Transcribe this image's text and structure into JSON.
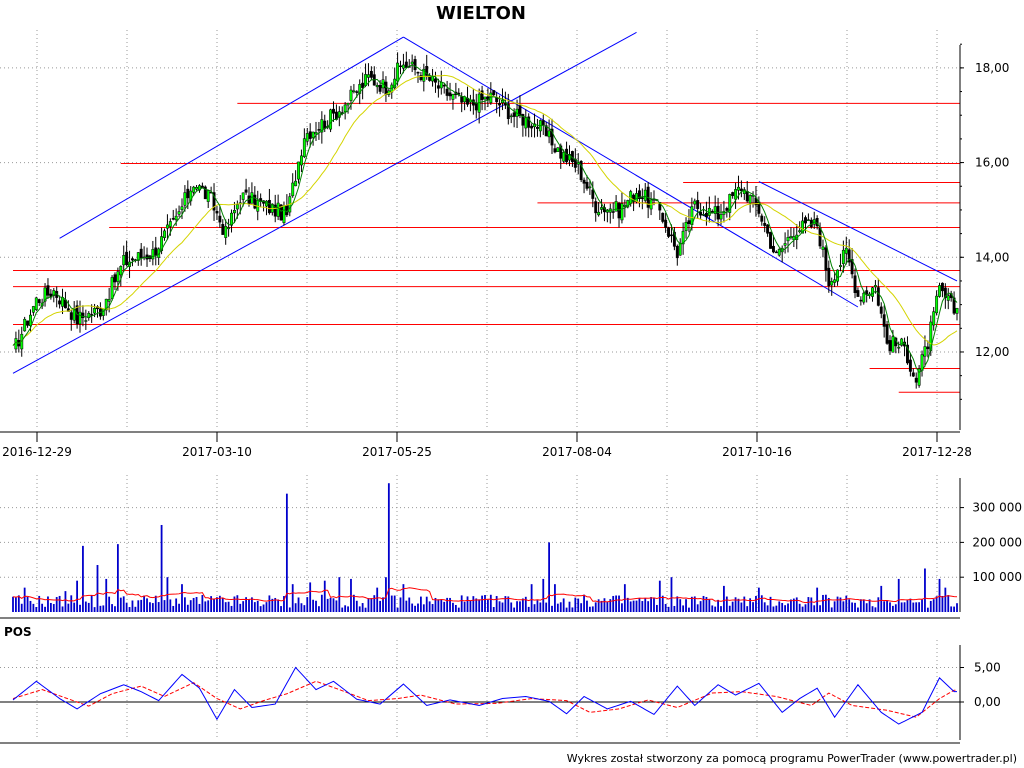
{
  "chart_data": [
    {
      "panel": "price",
      "type": "candlestick",
      "title": "WIELTON",
      "x_axis": "date",
      "x_ticks": [
        "2016-12-29",
        "2017-03-10",
        "2017-05-25",
        "2017-08-04",
        "2017-10-16",
        "2017-12-28"
      ],
      "y_ticks": [
        "12,00",
        "14,00",
        "16,00",
        "18,00"
      ],
      "ylim": [
        10.5,
        18.8
      ],
      "grid": true,
      "colors": {
        "up": "#00ff00",
        "down": "#000000",
        "ma_short": "#008000",
        "ma_long": "#d4d400",
        "hline": "#ff0000",
        "trend": "#0000ff"
      },
      "close_path": [
        {
          "i": 0,
          "v": 12.0
        },
        {
          "i": 8,
          "v": 13.1
        },
        {
          "i": 14,
          "v": 13.3
        },
        {
          "i": 22,
          "v": 12.7
        },
        {
          "i": 30,
          "v": 12.9
        },
        {
          "i": 38,
          "v": 13.9
        },
        {
          "i": 48,
          "v": 14.1
        },
        {
          "i": 56,
          "v": 14.8
        },
        {
          "i": 62,
          "v": 15.6
        },
        {
          "i": 68,
          "v": 15.2
        },
        {
          "i": 73,
          "v": 14.5
        },
        {
          "i": 78,
          "v": 15.3
        },
        {
          "i": 86,
          "v": 15.1
        },
        {
          "i": 94,
          "v": 14.9
        },
        {
          "i": 100,
          "v": 16.6
        },
        {
          "i": 108,
          "v": 16.9
        },
        {
          "i": 115,
          "v": 17.3
        },
        {
          "i": 122,
          "v": 17.8
        },
        {
          "i": 128,
          "v": 17.6
        },
        {
          "i": 134,
          "v": 18.1
        },
        {
          "i": 140,
          "v": 17.9
        },
        {
          "i": 148,
          "v": 17.5
        },
        {
          "i": 156,
          "v": 17.2
        },
        {
          "i": 164,
          "v": 17.4
        },
        {
          "i": 172,
          "v": 17.0
        },
        {
          "i": 180,
          "v": 16.8
        },
        {
          "i": 188,
          "v": 16.2
        },
        {
          "i": 194,
          "v": 15.9
        },
        {
          "i": 200,
          "v": 15.1
        },
        {
          "i": 208,
          "v": 15.0
        },
        {
          "i": 214,
          "v": 15.4
        },
        {
          "i": 222,
          "v": 15.0
        },
        {
          "i": 228,
          "v": 14.1
        },
        {
          "i": 234,
          "v": 15.1
        },
        {
          "i": 242,
          "v": 14.9
        },
        {
          "i": 250,
          "v": 15.5
        },
        {
          "i": 256,
          "v": 15.0
        },
        {
          "i": 262,
          "v": 14.0
        },
        {
          "i": 268,
          "v": 14.6
        },
        {
          "i": 276,
          "v": 14.7
        },
        {
          "i": 280,
          "v": 13.5
        },
        {
          "i": 286,
          "v": 14.1
        },
        {
          "i": 290,
          "v": 13.2
        },
        {
          "i": 296,
          "v": 13.4
        },
        {
          "i": 300,
          "v": 12.2
        },
        {
          "i": 306,
          "v": 12.1
        },
        {
          "i": 310,
          "v": 11.4
        },
        {
          "i": 314,
          "v": 12.2
        },
        {
          "i": 318,
          "v": 13.3
        },
        {
          "i": 323,
          "v": 12.9
        }
      ],
      "horizontal_levels": [
        {
          "y": 17.25,
          "from": 77,
          "to": 324
        },
        {
          "y": 15.98,
          "from": 37,
          "to": 324
        },
        {
          "y": 15.58,
          "from": 230,
          "to": 324
        },
        {
          "y": 15.15,
          "from": 180,
          "to": 324
        },
        {
          "y": 14.63,
          "from": 33,
          "to": 324
        },
        {
          "y": 13.72,
          "from": 0,
          "to": 324
        },
        {
          "y": 13.38,
          "from": 0,
          "to": 324
        },
        {
          "y": 12.58,
          "from": 0,
          "to": 324
        },
        {
          "y": 11.65,
          "from": 294,
          "to": 324
        },
        {
          "y": 11.15,
          "from": 304,
          "to": 324
        }
      ],
      "trend_lines": [
        {
          "x1": 16,
          "y1": 14.4,
          "x2": 134,
          "y2": 18.65
        },
        {
          "x1": 0,
          "y1": 11.55,
          "x2": 214,
          "y2": 18.75
        },
        {
          "x1": 134,
          "y1": 18.65,
          "x2": 290,
          "y2": 12.95
        },
        {
          "x1": 256,
          "y1": 15.6,
          "x2": 324,
          "y2": 13.5
        }
      ]
    },
    {
      "panel": "volume",
      "type": "bar",
      "y_ticks": [
        "100 000",
        "200 000",
        "300 000"
      ],
      "ylim": [
        0,
        385000
      ],
      "colors": {
        "bar": "#0000cc",
        "ma": "#ff0000"
      },
      "spikes": [
        {
          "i": 4,
          "v": 70000
        },
        {
          "i": 18,
          "v": 60000
        },
        {
          "i": 22,
          "v": 90000
        },
        {
          "i": 24,
          "v": 190000
        },
        {
          "i": 29,
          "v": 135000
        },
        {
          "i": 32,
          "v": 95000
        },
        {
          "i": 36,
          "v": 195000
        },
        {
          "i": 51,
          "v": 250000
        },
        {
          "i": 53,
          "v": 100000
        },
        {
          "i": 58,
          "v": 80000
        },
        {
          "i": 94,
          "v": 340000
        },
        {
          "i": 96,
          "v": 80000
        },
        {
          "i": 102,
          "v": 85000
        },
        {
          "i": 107,
          "v": 90000
        },
        {
          "i": 112,
          "v": 100000
        },
        {
          "i": 116,
          "v": 95000
        },
        {
          "i": 125,
          "v": 70000
        },
        {
          "i": 129,
          "v": 370000
        },
        {
          "i": 128,
          "v": 100000
        },
        {
          "i": 134,
          "v": 80000
        },
        {
          "i": 178,
          "v": 80000
        },
        {
          "i": 182,
          "v": 95000
        },
        {
          "i": 184,
          "v": 200000
        },
        {
          "i": 186,
          "v": 80000
        },
        {
          "i": 210,
          "v": 80000
        },
        {
          "i": 222,
          "v": 90000
        },
        {
          "i": 226,
          "v": 100000
        },
        {
          "i": 244,
          "v": 75000
        },
        {
          "i": 256,
          "v": 70000
        },
        {
          "i": 276,
          "v": 70000
        },
        {
          "i": 298,
          "v": 75000
        },
        {
          "i": 304,
          "v": 95000
        },
        {
          "i": 313,
          "v": 125000
        },
        {
          "i": 318,
          "v": 95000
        },
        {
          "i": 320,
          "v": 70000
        }
      ]
    },
    {
      "panel": "oscillator",
      "type": "line",
      "label": "POS",
      "y_ticks": [
        "5,00",
        "0,00"
      ],
      "ylim": [
        -6,
        7.5
      ],
      "colors": {
        "pos": "#0000ff",
        "signal": "#ff0000",
        "zero": "#000000"
      },
      "pos_path": [
        {
          "i": 0,
          "v": 0.3
        },
        {
          "i": 8,
          "v": 3.0
        },
        {
          "i": 16,
          "v": 0.5
        },
        {
          "i": 22,
          "v": -1.0
        },
        {
          "i": 30,
          "v": 1.2
        },
        {
          "i": 38,
          "v": 2.5
        },
        {
          "i": 44,
          "v": 1.5
        },
        {
          "i": 50,
          "v": 0.2
        },
        {
          "i": 58,
          "v": 4.0
        },
        {
          "i": 64,
          "v": 2.0
        },
        {
          "i": 70,
          "v": -2.5
        },
        {
          "i": 76,
          "v": 1.8
        },
        {
          "i": 82,
          "v": -0.8
        },
        {
          "i": 90,
          "v": -0.3
        },
        {
          "i": 97,
          "v": 5.0
        },
        {
          "i": 104,
          "v": 1.8
        },
        {
          "i": 110,
          "v": 3.0
        },
        {
          "i": 118,
          "v": 0.4
        },
        {
          "i": 126,
          "v": -0.3
        },
        {
          "i": 134,
          "v": 2.6
        },
        {
          "i": 142,
          "v": -0.5
        },
        {
          "i": 150,
          "v": 0.3
        },
        {
          "i": 160,
          "v": -0.5
        },
        {
          "i": 168,
          "v": 0.5
        },
        {
          "i": 176,
          "v": 0.8
        },
        {
          "i": 184,
          "v": 0.1
        },
        {
          "i": 190,
          "v": -1.7
        },
        {
          "i": 196,
          "v": 0.8
        },
        {
          "i": 204,
          "v": -1.0
        },
        {
          "i": 212,
          "v": 0.1
        },
        {
          "i": 220,
          "v": -1.8
        },
        {
          "i": 228,
          "v": 2.3
        },
        {
          "i": 234,
          "v": -0.5
        },
        {
          "i": 242,
          "v": 2.5
        },
        {
          "i": 248,
          "v": 1.0
        },
        {
          "i": 256,
          "v": 2.7
        },
        {
          "i": 264,
          "v": -1.5
        },
        {
          "i": 270,
          "v": 0.5
        },
        {
          "i": 276,
          "v": 2.0
        },
        {
          "i": 282,
          "v": -2.2
        },
        {
          "i": 290,
          "v": 2.5
        },
        {
          "i": 298,
          "v": -1.5
        },
        {
          "i": 304,
          "v": -3.2
        },
        {
          "i": 312,
          "v": -1.5
        },
        {
          "i": 318,
          "v": 3.5
        },
        {
          "i": 323,
          "v": 1.5
        }
      ],
      "signal_path": [
        {
          "i": 0,
          "v": 0.5
        },
        {
          "i": 10,
          "v": 1.8
        },
        {
          "i": 18,
          "v": 0.6
        },
        {
          "i": 26,
          "v": -0.6
        },
        {
          "i": 34,
          "v": 1.2
        },
        {
          "i": 44,
          "v": 2.3
        },
        {
          "i": 52,
          "v": 0.8
        },
        {
          "i": 62,
          "v": 2.8
        },
        {
          "i": 70,
          "v": 0.5
        },
        {
          "i": 78,
          "v": -1.0
        },
        {
          "i": 86,
          "v": 0.2
        },
        {
          "i": 94,
          "v": 1.2
        },
        {
          "i": 104,
          "v": 3.0
        },
        {
          "i": 112,
          "v": 1.8
        },
        {
          "i": 122,
          "v": 0.2
        },
        {
          "i": 132,
          "v": 0.5
        },
        {
          "i": 140,
          "v": 1.0
        },
        {
          "i": 152,
          "v": -0.3
        },
        {
          "i": 166,
          "v": -0.2
        },
        {
          "i": 178,
          "v": 0.5
        },
        {
          "i": 190,
          "v": 0.2
        },
        {
          "i": 198,
          "v": -1.5
        },
        {
          "i": 208,
          "v": -1.0
        },
        {
          "i": 218,
          "v": 0.3
        },
        {
          "i": 228,
          "v": -0.8
        },
        {
          "i": 240,
          "v": 1.3
        },
        {
          "i": 250,
          "v": 1.5
        },
        {
          "i": 262,
          "v": 0.8
        },
        {
          "i": 274,
          "v": -0.5
        },
        {
          "i": 280,
          "v": 1.3
        },
        {
          "i": 288,
          "v": -0.5
        },
        {
          "i": 300,
          "v": -1.2
        },
        {
          "i": 310,
          "v": -2.2
        },
        {
          "i": 318,
          "v": 0.5
        },
        {
          "i": 323,
          "v": 1.7
        }
      ]
    }
  ],
  "footer": "Wykres został stworzony za pomocą programu PowerTrader (www.powertrader.pl)"
}
